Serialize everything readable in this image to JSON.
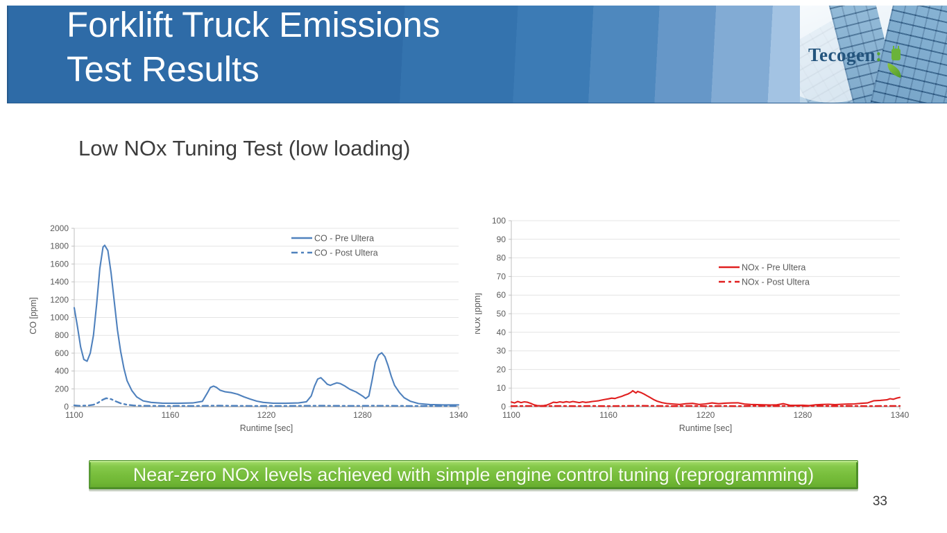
{
  "slide": {
    "title": "Forklift Truck Emissions\nTest Results",
    "subtitle": "Low NOx Tuning Test (low loading)",
    "banner_text": "Near-zero NOx levels achieved with simple engine control tuning (reprogramming)",
    "page_number": "33",
    "logo_wordmark": "Tecogen",
    "logo_colon": ":"
  },
  "colors": {
    "header_blue": "#2E6BA7",
    "co_series_blue": "#4F81BD",
    "nox_series_red": "#E01F1F",
    "banner_green": "#76BC43",
    "grid": "#E4E4E4",
    "y_axis": "#BFBFBF",
    "x_axis": "#A6A6A6",
    "tick_text": "#595959"
  },
  "chart_data": [
    {
      "type": "line",
      "title": "",
      "xlabel": "Runtime [sec]",
      "ylabel": "CO [ppm]",
      "xlim": [
        1100,
        1340
      ],
      "ylim": [
        0,
        2000
      ],
      "xticks": [
        1100,
        1160,
        1220,
        1280,
        1340
      ],
      "ytick_step": 200,
      "grid": true,
      "legend_position": "inside-top-right",
      "series": [
        {
          "name": "CO - Pre Ultera",
          "color": "#4F81BD",
          "dash": "",
          "points": [
            [
              1100,
              1110
            ],
            [
              1102,
              900
            ],
            [
              1104,
              670
            ],
            [
              1106,
              530
            ],
            [
              1108,
              510
            ],
            [
              1110,
              600
            ],
            [
              1112,
              800
            ],
            [
              1114,
              1150
            ],
            [
              1116,
              1550
            ],
            [
              1118,
              1790
            ],
            [
              1119,
              1810
            ],
            [
              1121,
              1750
            ],
            [
              1123,
              1500
            ],
            [
              1125,
              1180
            ],
            [
              1127,
              860
            ],
            [
              1129,
              620
            ],
            [
              1131,
              430
            ],
            [
              1133,
              290
            ],
            [
              1136,
              180
            ],
            [
              1139,
              110
            ],
            [
              1143,
              65
            ],
            [
              1148,
              48
            ],
            [
              1155,
              40
            ],
            [
              1165,
              38
            ],
            [
              1174,
              42
            ],
            [
              1180,
              60
            ],
            [
              1183,
              150
            ],
            [
              1185,
              215
            ],
            [
              1187,
              230
            ],
            [
              1189,
              215
            ],
            [
              1191,
              185
            ],
            [
              1194,
              168
            ],
            [
              1198,
              158
            ],
            [
              1202,
              140
            ],
            [
              1206,
              110
            ],
            [
              1210,
              85
            ],
            [
              1214,
              62
            ],
            [
              1218,
              48
            ],
            [
              1224,
              40
            ],
            [
              1232,
              38
            ],
            [
              1240,
              42
            ],
            [
              1245,
              55
            ],
            [
              1248,
              120
            ],
            [
              1250,
              230
            ],
            [
              1252,
              310
            ],
            [
              1254,
              325
            ],
            [
              1256,
              290
            ],
            [
              1258,
              252
            ],
            [
              1260,
              240
            ],
            [
              1262,
              255
            ],
            [
              1264,
              268
            ],
            [
              1266,
              260
            ],
            [
              1269,
              232
            ],
            [
              1272,
              196
            ],
            [
              1276,
              165
            ],
            [
              1280,
              120
            ],
            [
              1282,
              92
            ],
            [
              1284,
              120
            ],
            [
              1286,
              300
            ],
            [
              1288,
              500
            ],
            [
              1290,
              580
            ],
            [
              1292,
              605
            ],
            [
              1294,
              560
            ],
            [
              1296,
              460
            ],
            [
              1298,
              340
            ],
            [
              1300,
              240
            ],
            [
              1303,
              160
            ],
            [
              1306,
              100
            ],
            [
              1310,
              60
            ],
            [
              1315,
              35
            ],
            [
              1322,
              24
            ],
            [
              1330,
              20
            ],
            [
              1340,
              20
            ]
          ]
        },
        {
          "name": "CO - Post Ultera",
          "color": "#4F81BD",
          "dash": "8 5 3 5",
          "points": [
            [
              1100,
              15
            ],
            [
              1103,
              10
            ],
            [
              1106,
              12
            ],
            [
              1109,
              14
            ],
            [
              1112,
              22
            ],
            [
              1115,
              45
            ],
            [
              1118,
              80
            ],
            [
              1120,
              95
            ],
            [
              1123,
              85
            ],
            [
              1126,
              60
            ],
            [
              1129,
              38
            ],
            [
              1133,
              22
            ],
            [
              1137,
              14
            ],
            [
              1142,
              10
            ],
            [
              1150,
              9
            ],
            [
              1158,
              8
            ],
            [
              1166,
              9
            ],
            [
              1174,
              8
            ],
            [
              1182,
              10
            ],
            [
              1190,
              12
            ],
            [
              1198,
              10
            ],
            [
              1206,
              9
            ],
            [
              1214,
              8
            ],
            [
              1222,
              9
            ],
            [
              1230,
              8
            ],
            [
              1238,
              9
            ],
            [
              1246,
              10
            ],
            [
              1254,
              11
            ],
            [
              1262,
              10
            ],
            [
              1270,
              9
            ],
            [
              1278,
              9
            ],
            [
              1286,
              11
            ],
            [
              1294,
              10
            ],
            [
              1302,
              9
            ],
            [
              1310,
              8
            ],
            [
              1318,
              8
            ],
            [
              1326,
              8
            ],
            [
              1334,
              8
            ],
            [
              1340,
              8
            ]
          ]
        }
      ]
    },
    {
      "type": "line",
      "title": "",
      "xlabel": "Runtime [sec]",
      "ylabel": "NOx [ppm]",
      "xlim": [
        1100,
        1340
      ],
      "ylim": [
        0,
        100
      ],
      "xticks": [
        1100,
        1160,
        1220,
        1280,
        1340
      ],
      "ytick_step": 10,
      "grid": true,
      "legend_position": "inside-right",
      "series": [
        {
          "name": "NOx - Pre Ultera",
          "color": "#E01F1F",
          "dash": "",
          "points": [
            [
              1100,
              2.5
            ],
            [
              1102,
              2.0
            ],
            [
              1104,
              2.8
            ],
            [
              1106,
              2.2
            ],
            [
              1108,
              2.6
            ],
            [
              1110,
              2.4
            ],
            [
              1112,
              1.8
            ],
            [
              1114,
              1.0
            ],
            [
              1116,
              0.6
            ],
            [
              1118,
              0.5
            ],
            [
              1120,
              0.6
            ],
            [
              1122,
              0.9
            ],
            [
              1124,
              1.6
            ],
            [
              1126,
              2.4
            ],
            [
              1128,
              2.2
            ],
            [
              1130,
              2.6
            ],
            [
              1132,
              2.3
            ],
            [
              1134,
              2.7
            ],
            [
              1136,
              2.4
            ],
            [
              1138,
              2.8
            ],
            [
              1140,
              2.5
            ],
            [
              1142,
              2.2
            ],
            [
              1144,
              2.6
            ],
            [
              1146,
              2.3
            ],
            [
              1148,
              2.5
            ],
            [
              1150,
              2.8
            ],
            [
              1152,
              3.0
            ],
            [
              1154,
              3.2
            ],
            [
              1156,
              3.6
            ],
            [
              1158,
              3.9
            ],
            [
              1160,
              4.2
            ],
            [
              1162,
              4.6
            ],
            [
              1164,
              4.4
            ],
            [
              1166,
              5.0
            ],
            [
              1168,
              5.5
            ],
            [
              1170,
              6.2
            ],
            [
              1172,
              6.8
            ],
            [
              1174,
              7.8
            ],
            [
              1175,
              8.6
            ],
            [
              1176,
              8.0
            ],
            [
              1177,
              7.4
            ],
            [
              1178,
              8.2
            ],
            [
              1180,
              7.6
            ],
            [
              1182,
              6.8
            ],
            [
              1184,
              5.8
            ],
            [
              1186,
              4.8
            ],
            [
              1188,
              3.8
            ],
            [
              1190,
              3.0
            ],
            [
              1193,
              2.2
            ],
            [
              1196,
              1.7
            ],
            [
              1200,
              1.4
            ],
            [
              1204,
              1.2
            ],
            [
              1208,
              1.6
            ],
            [
              1212,
              1.8
            ],
            [
              1216,
              1.2
            ],
            [
              1220,
              1.5
            ],
            [
              1224,
              2.0
            ],
            [
              1228,
              1.6
            ],
            [
              1232,
              1.9
            ],
            [
              1236,
              2.0
            ],
            [
              1240,
              2.1
            ],
            [
              1244,
              1.4
            ],
            [
              1248,
              1.2
            ],
            [
              1252,
              1.1
            ],
            [
              1256,
              1.0
            ],
            [
              1260,
              0.9
            ],
            [
              1264,
              1.0
            ],
            [
              1268,
              1.6
            ],
            [
              1272,
              0.8
            ],
            [
              1276,
              0.7
            ],
            [
              1280,
              0.8
            ],
            [
              1284,
              0.6
            ],
            [
              1288,
              1.0
            ],
            [
              1292,
              1.2
            ],
            [
              1296,
              1.3
            ],
            [
              1300,
              1.1
            ],
            [
              1304,
              1.3
            ],
            [
              1308,
              1.4
            ],
            [
              1312,
              1.5
            ],
            [
              1316,
              1.8
            ],
            [
              1320,
              2.0
            ],
            [
              1324,
              3.2
            ],
            [
              1328,
              3.4
            ],
            [
              1332,
              3.7
            ],
            [
              1334,
              4.3
            ],
            [
              1336,
              4.0
            ],
            [
              1338,
              4.6
            ],
            [
              1340,
              5.0
            ]
          ]
        },
        {
          "name": "NOx - Post Ultera",
          "color": "#E01F1F",
          "dash": "8 5 3 5",
          "points": [
            [
              1100,
              0.3
            ],
            [
              1110,
              0.4
            ],
            [
              1120,
              0.3
            ],
            [
              1130,
              0.4
            ],
            [
              1140,
              0.3
            ],
            [
              1150,
              0.4
            ],
            [
              1160,
              0.3
            ],
            [
              1170,
              0.4
            ],
            [
              1180,
              0.5
            ],
            [
              1190,
              0.4
            ],
            [
              1200,
              0.3
            ],
            [
              1210,
              0.4
            ],
            [
              1220,
              0.3
            ],
            [
              1230,
              0.4
            ],
            [
              1240,
              0.3
            ],
            [
              1250,
              0.4
            ],
            [
              1260,
              0.3
            ],
            [
              1270,
              0.4
            ],
            [
              1280,
              0.3
            ],
            [
              1290,
              0.4
            ],
            [
              1300,
              0.3
            ],
            [
              1310,
              0.4
            ],
            [
              1320,
              0.3
            ],
            [
              1330,
              0.4
            ],
            [
              1340,
              0.4
            ]
          ]
        }
      ]
    }
  ]
}
